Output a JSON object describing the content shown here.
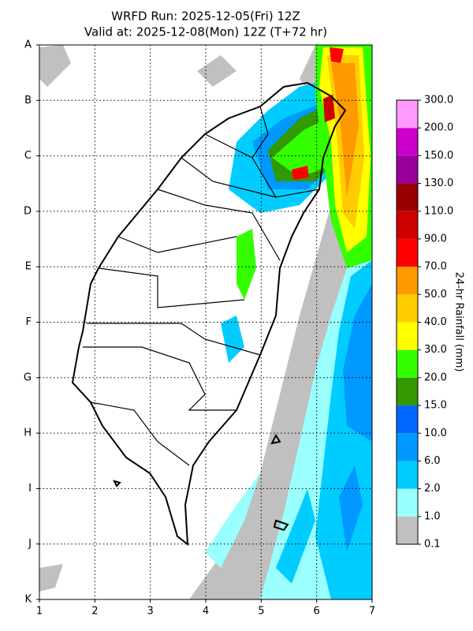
{
  "header": {
    "line1": "WRFD Run: 2025-12-05(Fri) 12Z",
    "line2": "Valid at: 2025-12-08(Mon) 12Z (T+72 hr)"
  },
  "grid": {
    "rows": [
      "A",
      "B",
      "C",
      "D",
      "E",
      "F",
      "G",
      "H",
      "I",
      "J",
      "K"
    ],
    "columns": [
      "1",
      "2",
      "3",
      "4",
      "5",
      "6",
      "7"
    ]
  },
  "colorbar": {
    "title": "24-hr Rainfall (mm)",
    "labels": [
      "0.1",
      "1.0",
      "2.0",
      "6.0",
      "10.0",
      "15.0",
      "20.0",
      "30.0",
      "40.0",
      "50.0",
      "70.0",
      "90.0",
      "110.0",
      "130.0",
      "150.0",
      "200.0",
      "300.0"
    ],
    "colors": [
      "#c0c0c0",
      "#99ffff",
      "#00ccff",
      "#0099ff",
      "#0066ff",
      "#339900",
      "#33ff00",
      "#ffff00",
      "#ffcc00",
      "#ff9900",
      "#ff0000",
      "#cc0000",
      "#990000",
      "#990099",
      "#cc00cc",
      "#ff99ff"
    ]
  }
}
